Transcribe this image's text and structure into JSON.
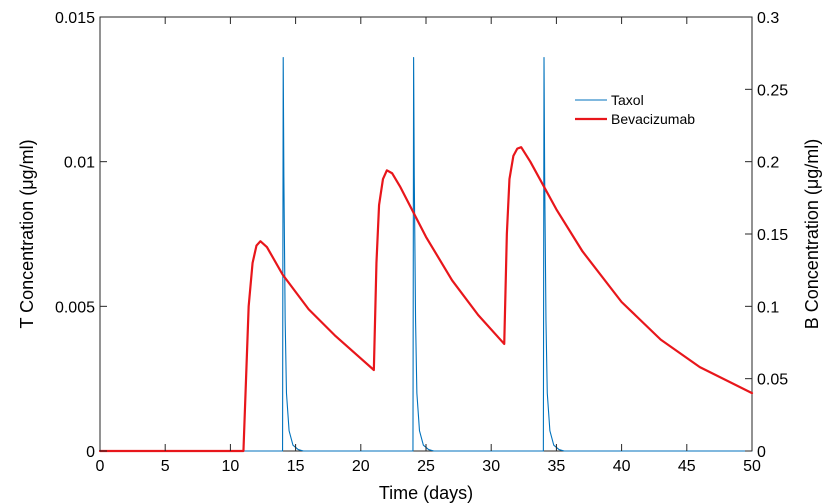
{
  "chart_data": {
    "type": "line",
    "xlabel": "Time (days)",
    "ylabel_left": "T Concentration (μg/ml)",
    "ylabel_right": "B Concentration (μg/ml)",
    "xlim": [
      0,
      50
    ],
    "ylim_left": [
      0,
      0.015
    ],
    "ylim_right": [
      0,
      0.3
    ],
    "x_ticks": [
      0,
      5,
      10,
      15,
      20,
      25,
      30,
      35,
      40,
      45,
      50
    ],
    "y_ticks_left": [
      0,
      0.005,
      0.01,
      0.015
    ],
    "y_ticks_left_labels": [
      "0",
      "0.005",
      "0.01",
      "0.015"
    ],
    "y_ticks_right": [
      0,
      0.05,
      0.1,
      0.15,
      0.2,
      0.25,
      0.3
    ],
    "y_ticks_right_labels": [
      "0",
      "0.05",
      "0.1",
      "0.15",
      "0.2",
      "0.25",
      "0.3"
    ],
    "grid": false,
    "legend_position": "top-right",
    "series": [
      {
        "name": "Taxol",
        "axis": "left",
        "color": "#0072BD",
        "x": [
          0,
          14.0,
          14.05,
          14.1,
          14.2,
          14.3,
          14.5,
          14.8,
          15.2,
          15.6,
          24.0,
          24.05,
          24.1,
          24.2,
          24.3,
          24.5,
          24.8,
          25.2,
          25.6,
          34.0,
          34.05,
          34.1,
          34.2,
          34.3,
          34.5,
          34.8,
          35.2,
          35.6,
          50
        ],
        "y": [
          0,
          0,
          0.0136,
          0.0095,
          0.0045,
          0.002,
          0.0007,
          0.0002,
          5e-05,
          0,
          0,
          0.0136,
          0.0095,
          0.0045,
          0.002,
          0.0007,
          0.0002,
          5e-05,
          0,
          0,
          0.0136,
          0.0095,
          0.0045,
          0.002,
          0.0007,
          0.0002,
          5e-05,
          0,
          0
        ]
      },
      {
        "name": "Bevacizumab",
        "axis": "right",
        "color": "#E8161B",
        "x": [
          0,
          11.0,
          11.2,
          11.4,
          11.7,
          12.0,
          12.3,
          12.8,
          14,
          16,
          18,
          20,
          21.0,
          21.2,
          21.4,
          21.7,
          22.0,
          22.4,
          23,
          25,
          27,
          29,
          31.0,
          31.2,
          31.4,
          31.7,
          32.0,
          32.3,
          33,
          35,
          37,
          40,
          43,
          46,
          50
        ],
        "y": [
          0,
          0,
          0.05,
          0.1,
          0.13,
          0.142,
          0.145,
          0.141,
          0.122,
          0.098,
          0.08,
          0.064,
          0.056,
          0.13,
          0.17,
          0.188,
          0.194,
          0.192,
          0.183,
          0.148,
          0.118,
          0.094,
          0.074,
          0.15,
          0.188,
          0.204,
          0.209,
          0.21,
          0.2,
          0.167,
          0.138,
          0.103,
          0.077,
          0.058,
          0.04
        ]
      }
    ]
  }
}
